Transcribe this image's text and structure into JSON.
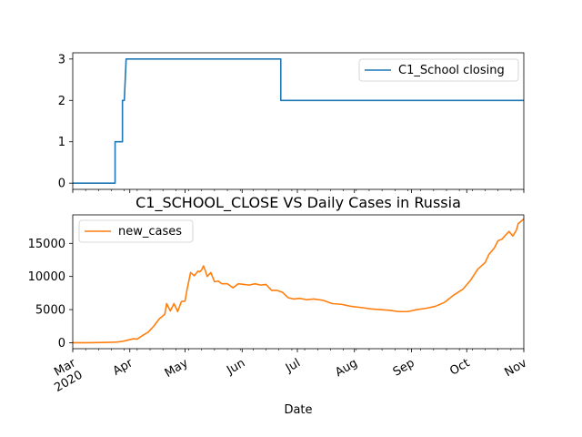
{
  "chart_data": [
    {
      "type": "line",
      "title": "",
      "xlabel": "",
      "ylabel": "",
      "x_range": [
        "2020-03-01",
        "2020-11-01"
      ],
      "ylim": [
        -0.15,
        3.15
      ],
      "y_ticks": [
        "0",
        "1",
        "2",
        "3"
      ],
      "grid": false,
      "legend_position": "top-right",
      "series": [
        {
          "name": "C1_School closing",
          "color": "#1f77b4",
          "points": [
            [
              "2020-03-01",
              0
            ],
            [
              "2020-03-24",
              0
            ],
            [
              "2020-03-24",
              1
            ],
            [
              "2020-03-28",
              1
            ],
            [
              "2020-03-28",
              2
            ],
            [
              "2020-03-29",
              2
            ],
            [
              "2020-03-30",
              3
            ],
            [
              "2020-06-22",
              3
            ],
            [
              "2020-06-22",
              2
            ],
            [
              "2020-11-01",
              2
            ]
          ]
        }
      ]
    },
    {
      "type": "line",
      "title": "C1_SCHOOL_CLOSE VS Daily Cases in Russia",
      "xlabel": "Date",
      "ylabel": "",
      "x_range": [
        "2020-03-01",
        "2020-11-01"
      ],
      "ylim": [
        -900,
        19300
      ],
      "y_ticks": [
        "0",
        "5000",
        "10000",
        "15000"
      ],
      "x_ticks": [
        "Mar\n2020",
        "Apr",
        "May",
        "Jun",
        "Jul",
        "Aug",
        "Sep",
        "Oct",
        "Nov"
      ],
      "grid": false,
      "legend_position": "top-left",
      "series": [
        {
          "name": "new_cases",
          "color": "#ff7f0e",
          "points": [
            [
              "2020-03-01",
              0
            ],
            [
              "2020-03-10",
              3
            ],
            [
              "2020-03-20",
              50
            ],
            [
              "2020-03-25",
              100
            ],
            [
              "2020-03-28",
              200
            ],
            [
              "2020-03-31",
              400
            ],
            [
              "2020-04-03",
              600
            ],
            [
              "2020-04-05",
              550
            ],
            [
              "2020-04-08",
              1100
            ],
            [
              "2020-04-11",
              1600
            ],
            [
              "2020-04-14",
              2500
            ],
            [
              "2020-04-17",
              3600
            ],
            [
              "2020-04-20",
              4300
            ],
            [
              "2020-04-21",
              5900
            ],
            [
              "2020-04-23",
              4800
            ],
            [
              "2020-04-25",
              5900
            ],
            [
              "2020-04-27",
              4700
            ],
            [
              "2020-04-29",
              6200
            ],
            [
              "2020-05-01",
              6300
            ],
            [
              "2020-05-02",
              7900
            ],
            [
              "2020-05-04",
              10600
            ],
            [
              "2020-05-06",
              10100
            ],
            [
              "2020-05-08",
              10800
            ],
            [
              "2020-05-09",
              10700
            ],
            [
              "2020-05-10",
              11000
            ],
            [
              "2020-05-11",
              11600
            ],
            [
              "2020-05-12",
              10900
            ],
            [
              "2020-05-13",
              10000
            ],
            [
              "2020-05-15",
              10600
            ],
            [
              "2020-05-17",
              9200
            ],
            [
              "2020-05-19",
              9300
            ],
            [
              "2020-05-21",
              8900
            ],
            [
              "2020-05-24",
              8900
            ],
            [
              "2020-05-27",
              8300
            ],
            [
              "2020-05-30",
              8900
            ],
            [
              "2020-06-02",
              8800
            ],
            [
              "2020-06-05",
              8700
            ],
            [
              "2020-06-08",
              8900
            ],
            [
              "2020-06-11",
              8700
            ],
            [
              "2020-06-14",
              8800
            ],
            [
              "2020-06-17",
              7900
            ],
            [
              "2020-06-20",
              7900
            ],
            [
              "2020-06-23",
              7600
            ],
            [
              "2020-06-26",
              6800
            ],
            [
              "2020-06-29",
              6600
            ],
            [
              "2020-07-02",
              6700
            ],
            [
              "2020-07-06",
              6500
            ],
            [
              "2020-07-10",
              6600
            ],
            [
              "2020-07-15",
              6400
            ],
            [
              "2020-07-20",
              5900
            ],
            [
              "2020-07-25",
              5800
            ],
            [
              "2020-07-30",
              5500
            ],
            [
              "2020-08-05",
              5300
            ],
            [
              "2020-08-10",
              5100
            ],
            [
              "2020-08-15",
              5000
            ],
            [
              "2020-08-20",
              4900
            ],
            [
              "2020-08-25",
              4700
            ],
            [
              "2020-08-30",
              4700
            ],
            [
              "2020-09-04",
              5000
            ],
            [
              "2020-09-09",
              5200
            ],
            [
              "2020-09-14",
              5500
            ],
            [
              "2020-09-19",
              6100
            ],
            [
              "2020-09-24",
              7200
            ],
            [
              "2020-09-29",
              8100
            ],
            [
              "2020-10-03",
              9400
            ],
            [
              "2020-10-07",
              11100
            ],
            [
              "2020-10-11",
              12100
            ],
            [
              "2020-10-13",
              13300
            ],
            [
              "2020-10-16",
              14300
            ],
            [
              "2020-10-18",
              15400
            ],
            [
              "2020-10-20",
              15600
            ],
            [
              "2020-10-22",
              16200
            ],
            [
              "2020-10-24",
              16800
            ],
            [
              "2020-10-26",
              16100
            ],
            [
              "2020-10-28",
              17000
            ],
            [
              "2020-10-29",
              18000
            ],
            [
              "2020-10-30",
              18200
            ],
            [
              "2020-11-01",
              18700
            ]
          ]
        }
      ]
    }
  ]
}
